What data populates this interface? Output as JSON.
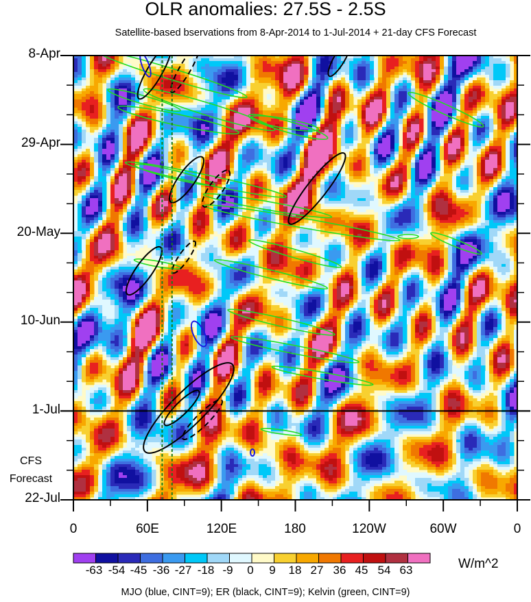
{
  "chart_data": {
    "type": "heatmap",
    "title": "OLR anomalies: 27.5S - 2.5S",
    "subtitle": "Satellite-based bservations from 8-Apr-2014 to 1-Jul-2014 + 21-day CFS Forecast",
    "xlabel": "",
    "ylabel": "",
    "x_ticks": [
      "0",
      "60E",
      "120E",
      "180",
      "120W",
      "60W",
      "0"
    ],
    "x_range_deg": [
      0,
      360
    ],
    "y_ticks": [
      "8-Apr",
      "29-Apr",
      "20-May",
      "10-Jun",
      "1-Jul",
      "22-Jul"
    ],
    "y_range_days": [
      0,
      105
    ],
    "observation_end_day": 84,
    "forecast_label_line1": "CFS",
    "forecast_label_line2": "Forecast",
    "reference_lines_lon": [
      72,
      80
    ],
    "colorbar": {
      "labels": [
        "-63",
        "-54",
        "-45",
        "-36",
        "-27",
        "-18",
        "-9",
        "0",
        "9",
        "18",
        "27",
        "36",
        "45",
        "54",
        "63"
      ],
      "colors": [
        "#a040f0",
        "#1010a0",
        "#2a2ab8",
        "#3e6ee0",
        "#3a9af0",
        "#00c8f8",
        "#a0d8f8",
        "#e0f8ff",
        "#fffac8",
        "#f8d030",
        "#f8a800",
        "#f07800",
        "#e82020",
        "#c01010",
        "#b03040",
        "#f070c0"
      ],
      "unit": "W/m^2"
    },
    "contours": {
      "mjo_color": "#1a1ae0",
      "er_color": "#000000",
      "kelvin_color": "#22dd22"
    },
    "footnote": "MJO (blue, CINT=9); ER (black, CINT=9); Kelvin (green, CINT=9)"
  }
}
